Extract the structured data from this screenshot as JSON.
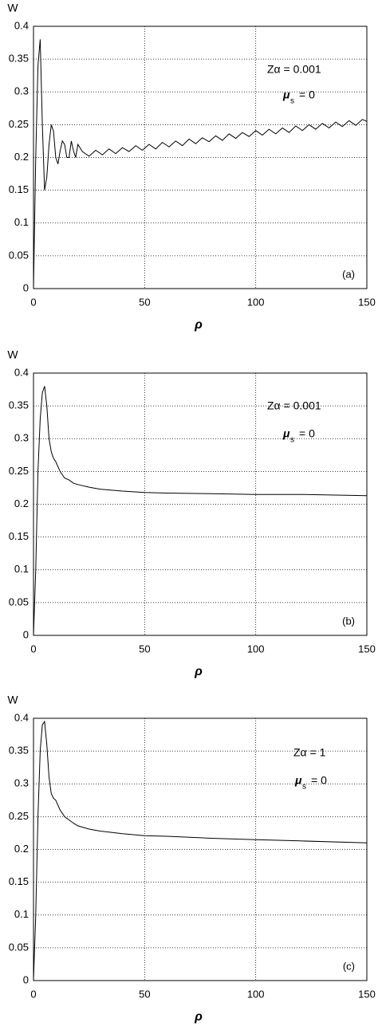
{
  "chart_data": [
    {
      "type": "line",
      "y_label": "W",
      "x_label": "ρ",
      "panel": "(a)",
      "parameter": "Zα = 0.001",
      "mass": {
        "symbol": "μ",
        "subscript": "s",
        "rest": "= 0"
      },
      "color": "#000000",
      "grid": true,
      "xlim": [
        0,
        150
      ],
      "xticks": [
        0,
        50,
        100,
        150
      ],
      "ylim": [
        0,
        0.4
      ],
      "yticks": [
        0,
        0.05,
        0.1,
        0.15,
        0.2,
        0.25,
        0.3,
        0.35,
        0.4
      ],
      "x": [
        0,
        1,
        2,
        3,
        4,
        5,
        6,
        7,
        8,
        9,
        10,
        11,
        12,
        13,
        14,
        15,
        16,
        17,
        18,
        19,
        20,
        22,
        25,
        28,
        31,
        34,
        37,
        40,
        43,
        46,
        49,
        52,
        55,
        58,
        61,
        64,
        67,
        70,
        73,
        76,
        79,
        82,
        85,
        88,
        91,
        94,
        97,
        100,
        103,
        106,
        109,
        112,
        115,
        118,
        121,
        124,
        127,
        130,
        133,
        136,
        139,
        142,
        145,
        148,
        150
      ],
      "values": [
        0,
        0.2,
        0.34,
        0.38,
        0.25,
        0.15,
        0.17,
        0.22,
        0.25,
        0.24,
        0.2,
        0.19,
        0.21,
        0.225,
        0.22,
        0.2,
        0.2,
        0.225,
        0.21,
        0.2,
        0.22,
        0.209,
        0.202,
        0.211,
        0.204,
        0.213,
        0.206,
        0.215,
        0.209,
        0.218,
        0.211,
        0.22,
        0.213,
        0.223,
        0.216,
        0.225,
        0.218,
        0.228,
        0.221,
        0.23,
        0.224,
        0.233,
        0.226,
        0.236,
        0.229,
        0.238,
        0.232,
        0.241,
        0.234,
        0.243,
        0.236,
        0.245,
        0.238,
        0.248,
        0.241,
        0.25,
        0.243,
        0.252,
        0.245,
        0.254,
        0.247,
        0.256,
        0.249,
        0.258,
        0.255
      ]
    },
    {
      "type": "line",
      "y_label": "W",
      "x_label": "ρ",
      "panel": "(b)",
      "parameter": "Zα = 0.001",
      "mass": {
        "symbol": "μ",
        "subscript": "s",
        "rest": "= 0"
      },
      "color": "#000000",
      "grid": true,
      "xlim": [
        0,
        150
      ],
      "xticks": [
        0,
        50,
        100,
        150
      ],
      "ylim": [
        0,
        0.4
      ],
      "yticks": [
        0,
        0.05,
        0.1,
        0.15,
        0.2,
        0.25,
        0.3,
        0.35,
        0.4
      ],
      "x": [
        0,
        1,
        2,
        3,
        4,
        5,
        6,
        7,
        8,
        9,
        10,
        12,
        14,
        16,
        18,
        20,
        25,
        30,
        40,
        50,
        60,
        80,
        100,
        120,
        150
      ],
      "values": [
        0,
        0.1,
        0.25,
        0.33,
        0.37,
        0.38,
        0.35,
        0.3,
        0.28,
        0.27,
        0.265,
        0.25,
        0.24,
        0.237,
        0.232,
        0.23,
        0.226,
        0.223,
        0.22,
        0.218,
        0.217,
        0.216,
        0.215,
        0.215,
        0.213
      ]
    },
    {
      "type": "line",
      "y_label": "W",
      "x_label": "ρ",
      "panel": "(c)",
      "parameter": "Zα = 1",
      "mass": {
        "symbol": "μ",
        "subscript": "s",
        "rest": "= 0"
      },
      "color": "#000000",
      "grid": true,
      "xlim": [
        0,
        150
      ],
      "xticks": [
        0,
        50,
        100,
        150
      ],
      "ylim": [
        0,
        0.4
      ],
      "yticks": [
        0,
        0.05,
        0.1,
        0.15,
        0.2,
        0.25,
        0.3,
        0.35,
        0.4
      ],
      "x": [
        0,
        1,
        2,
        3,
        4,
        5,
        6,
        7,
        8,
        9,
        10,
        12,
        14,
        16,
        18,
        20,
        25,
        30,
        40,
        50,
        60,
        80,
        100,
        120,
        150
      ],
      "values": [
        0,
        0.1,
        0.25,
        0.35,
        0.39,
        0.395,
        0.36,
        0.31,
        0.285,
        0.278,
        0.275,
        0.26,
        0.25,
        0.245,
        0.24,
        0.236,
        0.231,
        0.228,
        0.224,
        0.221,
        0.22,
        0.217,
        0.215,
        0.213,
        0.21
      ]
    }
  ]
}
